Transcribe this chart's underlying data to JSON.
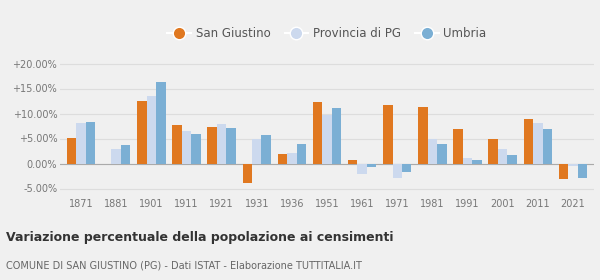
{
  "years": [
    1871,
    1881,
    1901,
    1911,
    1921,
    1931,
    1936,
    1951,
    1961,
    1971,
    1981,
    1991,
    2001,
    2011,
    2021
  ],
  "san_giustino": [
    5.1,
    -0.1,
    12.5,
    7.8,
    7.3,
    -3.8,
    2.0,
    12.3,
    0.8,
    11.8,
    11.3,
    6.9,
    5.0,
    9.0,
    -3.0
  ],
  "provincia_pg": [
    8.1,
    3.0,
    13.6,
    6.5,
    7.9,
    5.0,
    2.2,
    9.7,
    -2.1,
    -2.9,
    4.9,
    1.2,
    3.0,
    8.2,
    -0.5
  ],
  "umbria": [
    8.4,
    3.7,
    16.4,
    6.0,
    7.2,
    5.7,
    3.9,
    11.2,
    -0.6,
    -1.6,
    4.0,
    0.7,
    1.7,
    6.9,
    -2.8
  ],
  "color_san_giustino": "#e07820",
  "color_provincia": "#ccd9ee",
  "color_umbria": "#7bafd4",
  "title": "Variazione percentuale della popolazione ai censimenti",
  "subtitle": "COMUNE DI SAN GIUSTINO (PG) - Dati ISTAT - Elaborazione TUTTITALIA.IT",
  "ylim": [
    -6.5,
    21.5
  ],
  "yticks": [
    -5.0,
    0.0,
    5.0,
    10.0,
    15.0,
    20.0
  ],
  "ytick_labels": [
    "-5.00%",
    "0.00%",
    "+5.00%",
    "+10.00%",
    "+15.00%",
    "+20.00%"
  ],
  "background_color": "#f0f0f0",
  "grid_color": "#dddddd",
  "bar_width": 0.27
}
